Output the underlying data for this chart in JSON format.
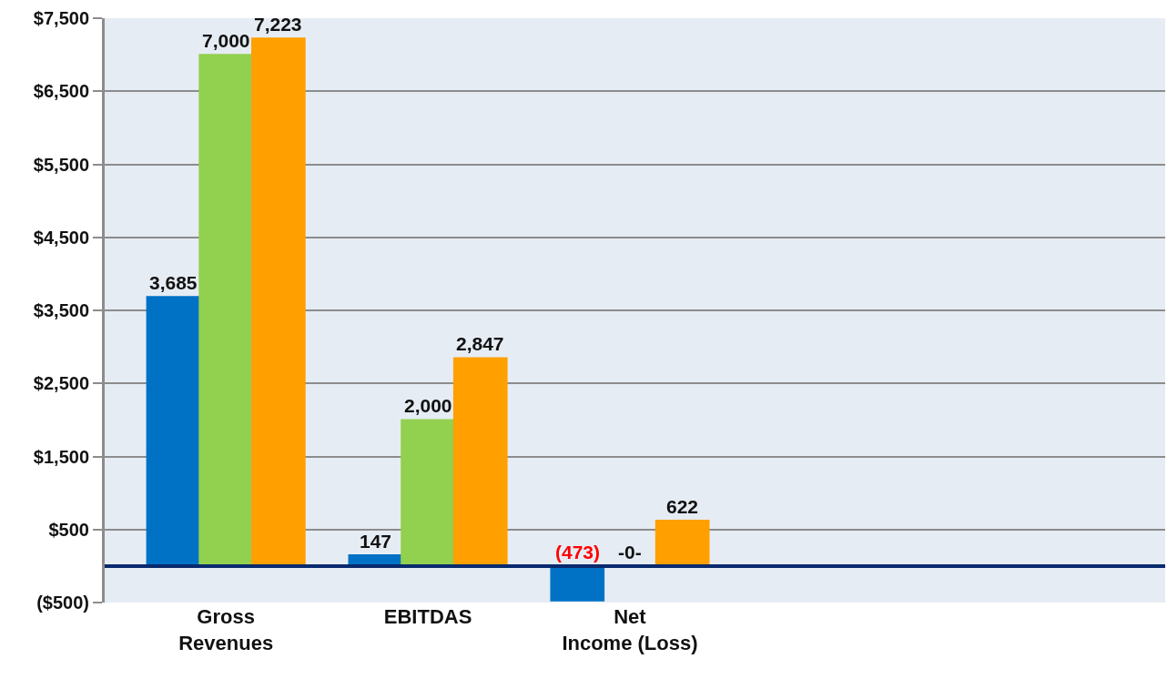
{
  "chart_data": {
    "type": "bar",
    "categories": [
      "Gross Revenues",
      "EBITDAS",
      "Net Income (Loss)",
      null,
      null
    ],
    "series": [
      {
        "color": "#0072c6",
        "values": [
          3685,
          147,
          -473,
          null,
          null
        ],
        "value_labels": [
          "3,685",
          "147",
          "(473)",
          null,
          null
        ]
      },
      {
        "color": "#92d050",
        "values": [
          7000,
          2000,
          0,
          null,
          null
        ],
        "value_labels": [
          "7,000",
          "2,000",
          "-0-",
          null,
          null
        ]
      },
      {
        "color": "#ffa000",
        "values": [
          7223,
          2847,
          622,
          null,
          null
        ],
        "value_labels": [
          "7,223",
          "2,847",
          "622",
          null,
          null
        ]
      }
    ],
    "ylim": [
      -500,
      7500
    ],
    "yticks": [
      {
        "value": -500,
        "label": "($500)"
      },
      {
        "value": 500,
        "label": "$500"
      },
      {
        "value": 1500,
        "label": "$1,500"
      },
      {
        "value": 2500,
        "label": "$2,500"
      },
      {
        "value": 3500,
        "label": "$3,500"
      },
      {
        "value": 4500,
        "label": "$4,500"
      },
      {
        "value": 5500,
        "label": "$5,500"
      },
      {
        "value": 6500,
        "label": "$6,500"
      },
      {
        "value": 7500,
        "label": "$7,500"
      }
    ],
    "ref_lines": [
      {
        "axis": "y",
        "value": 0,
        "color": "#0a2a6e"
      }
    ],
    "grid": "y"
  }
}
